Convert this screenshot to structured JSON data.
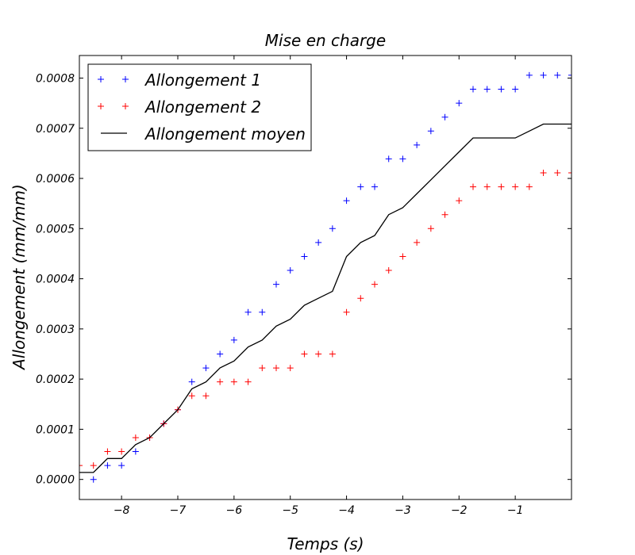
{
  "chart_data": {
    "type": "scatter",
    "title": "Mise en charge",
    "xlabel": "Temps (s)",
    "ylabel": "Allongement (mm/mm)",
    "xlim": [
      -8.75,
      -0.0
    ],
    "ylim": [
      -4e-05,
      0.000845
    ],
    "xticks": [
      -8,
      -7,
      -6,
      -5,
      -4,
      -3,
      -2,
      -1
    ],
    "xtick_labels": [
      "−8",
      "−7",
      "−6",
      "−5",
      "−4",
      "−3",
      "−2",
      "−1"
    ],
    "yticks": [
      0.0,
      0.0001,
      0.0002,
      0.0003,
      0.0004,
      0.0005,
      0.0006,
      0.0007,
      0.0008
    ],
    "ytick_labels": [
      "0.0000",
      "0.0001",
      "0.0002",
      "0.0003",
      "0.0004",
      "0.0005",
      "0.0006",
      "0.0007",
      "0.0008"
    ],
    "grid": false,
    "legend_position": "top-left",
    "series": [
      {
        "name": "Allongement 1",
        "style": "plus-marker",
        "color": "#0000ff",
        "x": [
          -8.5,
          -8.25,
          -8.0,
          -7.75,
          -7.5,
          -7.25,
          -7.0,
          -6.75,
          -6.5,
          -6.25,
          -6.0,
          -5.75,
          -5.5,
          -5.25,
          -5.0,
          -4.75,
          -4.5,
          -4.25,
          -4.0,
          -3.75,
          -3.5,
          -3.25,
          -3.0,
          -2.75,
          -2.5,
          -2.25,
          -2.0,
          -1.75,
          -1.5,
          -1.25,
          -1.0,
          -0.75,
          -0.5,
          -0.25,
          0.0
        ],
        "y": [
          0.0,
          2.78e-05,
          2.78e-05,
          5.56e-05,
          8.33e-05,
          0.0001111,
          0.0001389,
          0.0001944,
          0.0002222,
          0.00025,
          0.0002778,
          0.0003333,
          0.0003333,
          0.0003889,
          0.0004167,
          0.0004444,
          0.0004722,
          0.0005,
          0.0005556,
          0.0005833,
          0.0005833,
          0.0006389,
          0.0006389,
          0.0006667,
          0.0006944,
          0.0007222,
          0.00075,
          0.0007778,
          0.0007778,
          0.0007778,
          0.0007778,
          0.0008056,
          0.0008056,
          0.0008056,
          0.0008056
        ]
      },
      {
        "name": "Allongement 2",
        "style": "plus-marker",
        "color": "#ff0000",
        "x": [
          -8.75,
          -8.5,
          -8.25,
          -8.0,
          -7.75,
          -7.5,
          -7.25,
          -7.0,
          -6.75,
          -6.5,
          -6.25,
          -6.0,
          -5.75,
          -5.5,
          -5.25,
          -5.0,
          -4.75,
          -4.5,
          -4.25,
          -4.0,
          -3.75,
          -3.5,
          -3.25,
          -3.0,
          -2.75,
          -2.5,
          -2.25,
          -2.0,
          -1.75,
          -1.5,
          -1.25,
          -1.0,
          -0.75,
          -0.5,
          -0.25,
          0.0
        ],
        "y": [
          2.78e-05,
          2.78e-05,
          5.56e-05,
          5.56e-05,
          8.33e-05,
          8.33e-05,
          0.0001111,
          0.0001389,
          0.0001667,
          0.0001667,
          0.0001944,
          0.0001944,
          0.0001944,
          0.0002222,
          0.0002222,
          0.0002222,
          0.00025,
          0.00025,
          0.00025,
          0.0003333,
          0.0003611,
          0.0003889,
          0.0004167,
          0.0004444,
          0.0004722,
          0.0005,
          0.0005278,
          0.0005556,
          0.0005833,
          0.0005833,
          0.0005833,
          0.0005833,
          0.0005833,
          0.0006111,
          0.0006111,
          0.0006111
        ]
      },
      {
        "name": "Allongement moyen",
        "style": "line",
        "color": "#000000",
        "x": [
          -8.75,
          -8.5,
          -8.25,
          -8.0,
          -7.75,
          -7.5,
          -7.25,
          -7.0,
          -6.75,
          -6.5,
          -6.25,
          -6.0,
          -5.75,
          -5.5,
          -5.25,
          -5.0,
          -4.75,
          -4.5,
          -4.25,
          -4.0,
          -3.75,
          -3.5,
          -3.25,
          -3.0,
          -2.75,
          -2.5,
          -2.25,
          -2.0,
          -1.75,
          -1.5,
          -1.25,
          -1.0,
          -0.75,
          -0.5,
          -0.25,
          0.0
        ],
        "y": [
          1.39e-05,
          1.39e-05,
          4.17e-05,
          4.17e-05,
          6.94e-05,
          8.33e-05,
          0.0001111,
          0.0001389,
          0.0001806,
          0.0001944,
          0.0002222,
          0.0002361,
          0.0002639,
          0.0002778,
          0.0003056,
          0.0003194,
          0.0003472,
          0.0003611,
          0.000375,
          0.0004444,
          0.0004722,
          0.0004861,
          0.0005278,
          0.0005417,
          0.0005694,
          0.0005972,
          0.000625,
          0.0006528,
          0.0006806,
          0.0006806,
          0.0006806,
          0.0006806,
          0.0006944,
          0.0007083,
          0.0007083,
          0.0007083
        ]
      }
    ]
  }
}
